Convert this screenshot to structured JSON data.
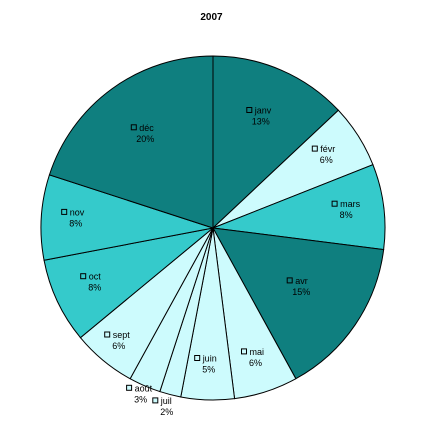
{
  "chart_data": {
    "type": "pie",
    "title": "2007",
    "start_angle_deg": 0,
    "direction": "clockwise",
    "slices": [
      {
        "label": "janv",
        "value": 13,
        "percent_label": "13%",
        "color": "#0f7f7f"
      },
      {
        "label": "févr",
        "value": 6,
        "percent_label": "6%",
        "color": "#cdfbfd"
      },
      {
        "label": "mars",
        "value": 8,
        "percent_label": "8%",
        "color": "#35cacb"
      },
      {
        "label": "avr",
        "value": 15,
        "percent_label": "15%",
        "color": "#0f7f7f"
      },
      {
        "label": "mai",
        "value": 6,
        "percent_label": "6%",
        "color": "#cdfbfd"
      },
      {
        "label": "juin",
        "value": 5,
        "percent_label": "5%",
        "color": "#cdfbfd"
      },
      {
        "label": "juil",
        "value": 2,
        "percent_label": "2%",
        "color": "#cdfbfd"
      },
      {
        "label": "août",
        "value": 3,
        "percent_label": "3%",
        "color": "#cdfbfd"
      },
      {
        "label": "sept",
        "value": 6,
        "percent_label": "6%",
        "color": "#cdfbfd"
      },
      {
        "label": "oct",
        "value": 8,
        "percent_label": "8%",
        "color": "#35cacb"
      },
      {
        "label": "nov",
        "value": 8,
        "percent_label": "8%",
        "color": "#35cacb"
      },
      {
        "label": "déc",
        "value": 20,
        "percent_label": "20%",
        "color": "#0f7f7f"
      }
    ]
  }
}
